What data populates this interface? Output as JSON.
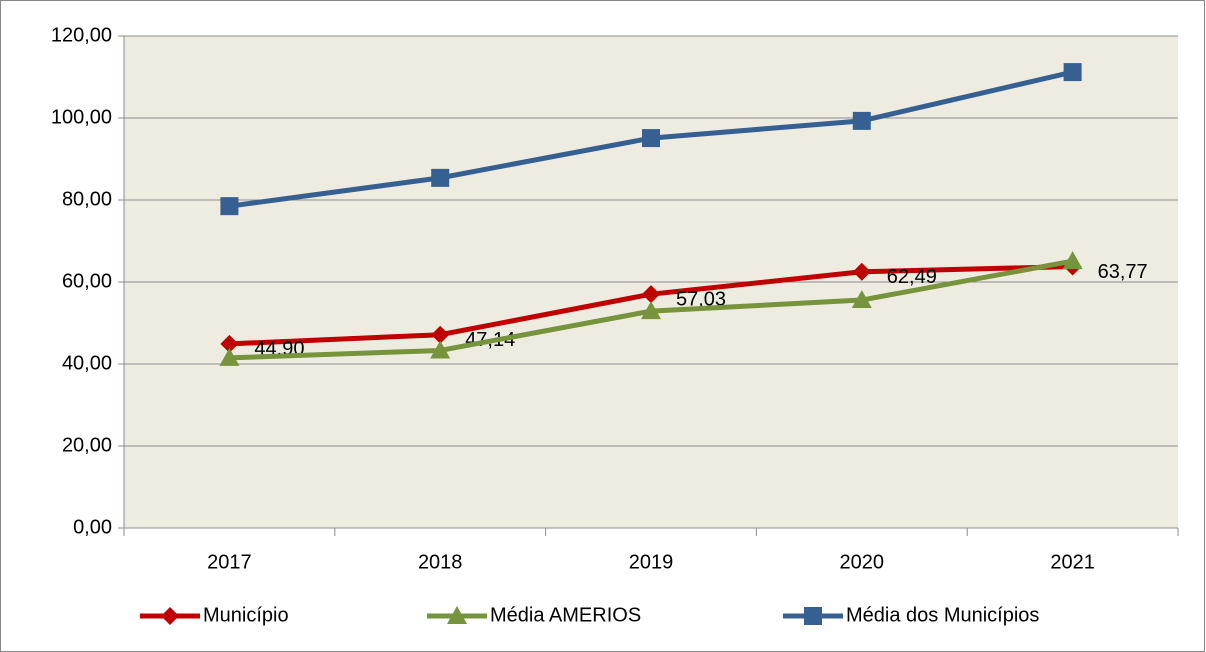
{
  "chart_data": {
    "type": "line",
    "categories": [
      "2017",
      "2018",
      "2019",
      "2020",
      "2021"
    ],
    "series": [
      {
        "name": "Município",
        "color": "#c00000",
        "marker": "diamond",
        "values": [
          44.9,
          47.14,
          57.03,
          62.49,
          63.77
        ],
        "value_labels": [
          "44,90",
          "47,14",
          "57,03",
          "62,49",
          "63,77"
        ]
      },
      {
        "name": "Média AMERIOS",
        "color": "#77933c",
        "marker": "triangle",
        "values": [
          41.5,
          43.3,
          52.9,
          55.6,
          65.1
        ]
      },
      {
        "name": "Média dos Municípios",
        "color": "#376092",
        "marker": "square",
        "values": [
          78.5,
          85.4,
          95.1,
          99.3,
          111.2
        ]
      }
    ],
    "ylim": [
      0,
      120
    ],
    "yticks": [
      {
        "value": 0,
        "label": "0,00"
      },
      {
        "value": 20,
        "label": "20,00"
      },
      {
        "value": 40,
        "label": "40,00"
      },
      {
        "value": 60,
        "label": "60,00"
      },
      {
        "value": 80,
        "label": "80,00"
      },
      {
        "value": 100,
        "label": "100,00"
      },
      {
        "value": 120,
        "label": "120,00"
      }
    ],
    "grid": true,
    "legend": "bottom",
    "plot_background": "#eeece1"
  }
}
